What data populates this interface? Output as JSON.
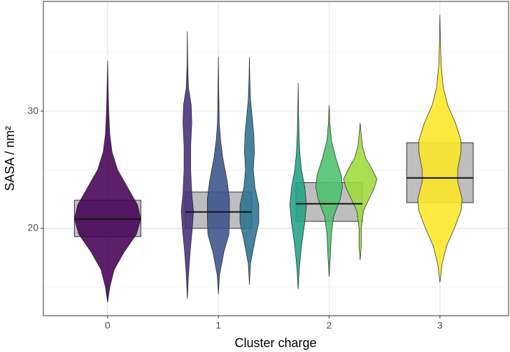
{
  "chart_data": {
    "type": "violin",
    "x_label": "Cluster charge",
    "y_label": "SASA / nm²",
    "categories": [
      "0",
      "1",
      "2",
      "3"
    ],
    "xlim": [
      -0.58,
      3.62
    ],
    "ylim": [
      12.56,
      39.35
    ],
    "yticks": [
      20,
      30
    ],
    "minor_yticks": [
      15,
      25,
      35
    ],
    "grid": true,
    "box_color": "#bebebe",
    "groups": [
      {
        "box": {
          "q1": 19.3,
          "median": 20.8,
          "q3": 22.4
        },
        "violins": [
          {
            "color": "#440154",
            "y": [
              13.7,
              15,
              16.5,
              18,
              19.5,
              20.8,
              22,
              23.5,
              25,
              26.5,
              28,
              30,
              32,
              34.3
            ],
            "density": [
              0,
              0.02,
              0.06,
              0.15,
              0.26,
              0.3,
              0.27,
              0.18,
              0.09,
              0.04,
              0.02,
              0.01,
              0.005,
              0
            ]
          }
        ]
      },
      {
        "box": {
          "q1": 20.0,
          "median": 21.4,
          "q3": 23.1
        },
        "violins": [
          {
            "color": "#472d7b",
            "y": [
              14,
              16,
              18,
              20,
              21.5,
              23,
              25,
              27,
              29,
              30.5,
              32,
              34,
              36.8
            ],
            "density": [
              0,
              0.01,
              0.025,
              0.045,
              0.055,
              0.04,
              0.03,
              0.03,
              0.04,
              0.035,
              0.01,
              0.003,
              0
            ]
          },
          {
            "color": "#3b528b",
            "y": [
              14.4,
              16,
              18,
              19.5,
              21,
              22.5,
              24,
              26,
              27.5,
              29,
              32,
              34.6
            ],
            "density": [
              0,
              0.01,
              0.05,
              0.095,
              0.1,
              0.1,
              0.08,
              0.04,
              0.02,
              0.008,
              0.003,
              0
            ]
          },
          {
            "color": "#2c728e",
            "y": [
              15.2,
              17,
              19,
              20.5,
              22,
              23.5,
              25,
              26.5,
              28,
              29.5,
              31,
              33,
              34.6
            ],
            "density": [
              0,
              0.01,
              0.05,
              0.085,
              0.085,
              0.05,
              0.035,
              0.045,
              0.04,
              0.025,
              0.01,
              0.003,
              0
            ]
          }
        ]
      },
      {
        "box": {
          "q1": 20.6,
          "median": 22.1,
          "q3": 23.9
        },
        "violins": [
          {
            "color": "#20a386",
            "y": [
              14.8,
              16.5,
              18.5,
              20.5,
              22,
              23.5,
              25,
              26.5,
              28,
              30,
              32.4
            ],
            "density": [
              0,
              0.01,
              0.03,
              0.06,
              0.075,
              0.06,
              0.03,
              0.015,
              0.008,
              0.003,
              0
            ]
          },
          {
            "color": "#4ac16d",
            "y": [
              15.9,
              17.5,
              19.5,
              21,
              22.5,
              23.5,
              24.5,
              26,
              27.5,
              29,
              30.5
            ],
            "density": [
              0,
              0.01,
              0.02,
              0.04,
              0.1,
              0.12,
              0.11,
              0.06,
              0.02,
              0.006,
              0
            ]
          },
          {
            "color": "#9fda3a",
            "y": [
              17.3,
              18.5,
              20,
              21.5,
              22.5,
              23.5,
              24.2,
              25,
              26,
              27,
              29
            ],
            "density": [
              0,
              0.01,
              0.01,
              0.03,
              0.08,
              0.13,
              0.15,
              0.11,
              0.05,
              0.02,
              0
            ]
          }
        ]
      },
      {
        "box": {
          "q1": 22.2,
          "median": 24.3,
          "q3": 27.3
        },
        "violins": [
          {
            "color": "#fde725",
            "y": [
              15.4,
              17,
              18.5,
              20,
              21.5,
              22.5,
              24,
              25,
              26.5,
              27.5,
              29,
              30.5,
              32,
              34,
              36,
              38.2
            ],
            "density": [
              0,
              0.02,
              0.06,
              0.13,
              0.19,
              0.2,
              0.16,
              0.16,
              0.19,
              0.19,
              0.14,
              0.07,
              0.03,
              0.01,
              0.004,
              0
            ]
          }
        ]
      }
    ]
  }
}
